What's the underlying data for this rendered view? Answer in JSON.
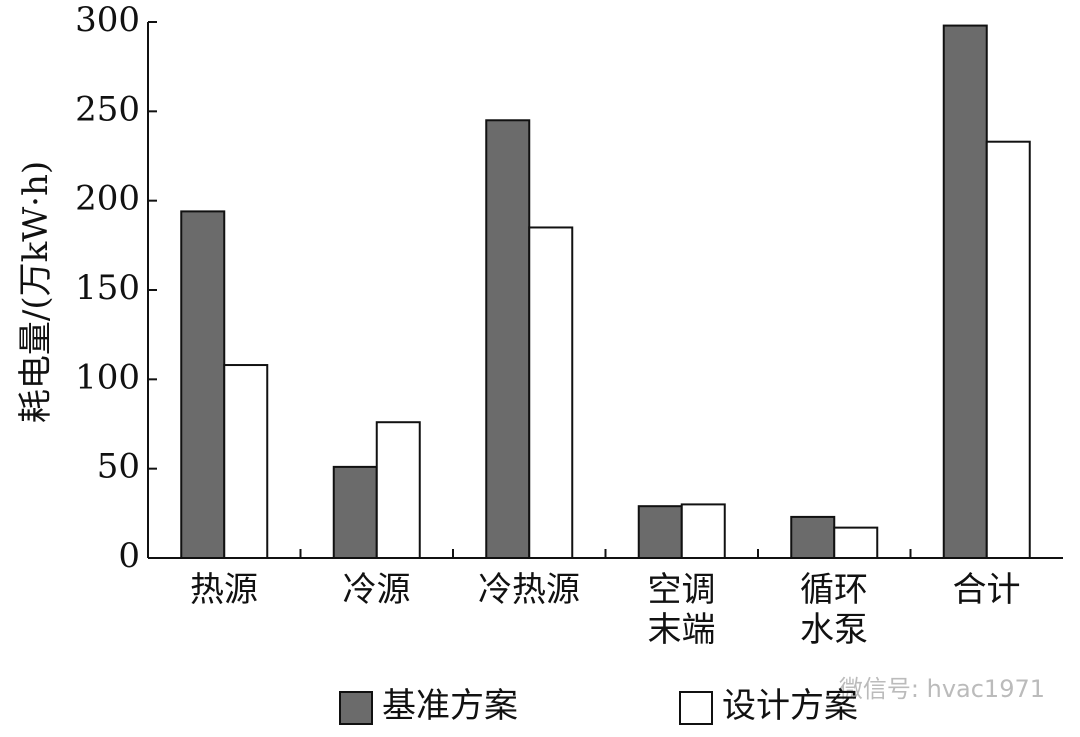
{
  "chart_data": {
    "type": "bar",
    "y_label": "耗电量/(万kW·h)",
    "categories": [
      "热源",
      "冷源",
      "冷热源",
      "空调\n末端",
      "循环\n水泵",
      "合计"
    ],
    "series": [
      {
        "name": "基准方案",
        "color": "#6b6b6b",
        "values": [
          194,
          51,
          245,
          29,
          23,
          298
        ]
      },
      {
        "name": "设计方案",
        "color": "#ffffff",
        "values": [
          108,
          76,
          185,
          30,
          17,
          233
        ]
      }
    ],
    "ylim": [
      0,
      300
    ],
    "yticks": [
      0,
      50,
      100,
      150,
      200,
      250,
      300
    ],
    "legend": "bottom",
    "watermark": "微信号: hvac1971"
  }
}
